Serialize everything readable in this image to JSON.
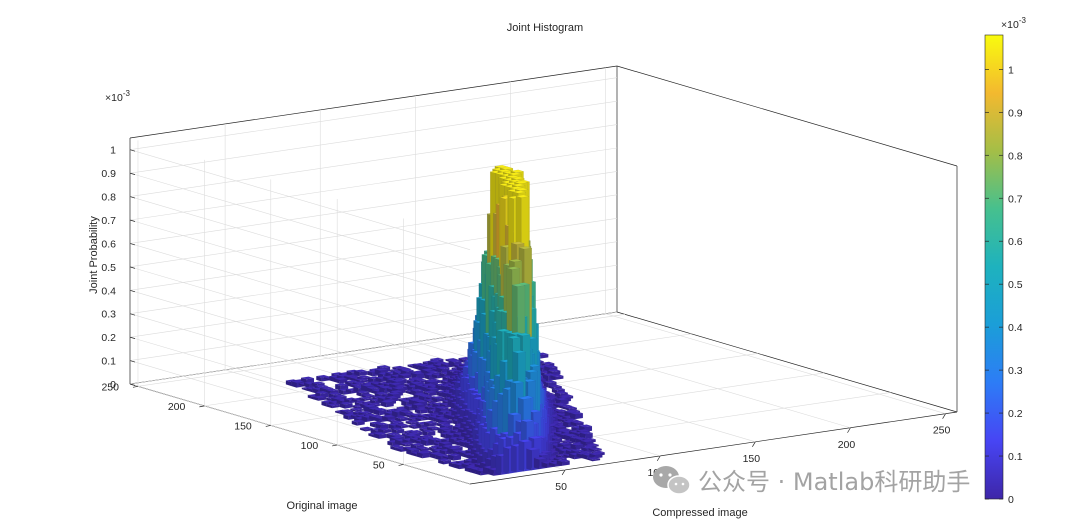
{
  "chart_data": {
    "type": "histogram3d",
    "title": "Joint Histogram",
    "xlabel": "Compressed image",
    "ylabel": "Original image",
    "zlabel": "Joint Probability",
    "z_exponent_label": "×10",
    "z_exponent": "-3",
    "xlim": [
      0,
      256
    ],
    "ylim": [
      0,
      256
    ],
    "zlim": [
      0,
      0.00105
    ],
    "x_ticks": [
      "50",
      "100",
      "150",
      "200",
      "250"
    ],
    "y_ticks": [
      "50",
      "100",
      "150",
      "200",
      "250"
    ],
    "z_ticks": [
      "0",
      "0.1",
      "0.2",
      "0.3",
      "0.4",
      "0.5",
      "0.6",
      "0.7",
      "0.8",
      "0.9",
      "1"
    ],
    "grid": true,
    "colormap": "parula",
    "colorbar": {
      "ticks": [
        "0",
        "0.1",
        "0.2",
        "0.3",
        "0.4",
        "0.5",
        "0.6",
        "0.7",
        "0.8",
        "0.9",
        "1"
      ],
      "exponent_label": "×10",
      "exponent": "-3",
      "range": [
        0,
        0.00108
      ]
    },
    "peaks": [
      {
        "compressed": 78,
        "original": 80,
        "probability": 0.00104
      },
      {
        "compressed": 95,
        "original": 112,
        "probability": 0.00063
      },
      {
        "compressed": 48,
        "original": 40,
        "probability": 0.00048
      }
    ],
    "support": {
      "compressed_range": [
        14,
        175
      ],
      "original_range": [
        8,
        215
      ]
    }
  },
  "watermark": {
    "icon": "wechat-icon",
    "text": "公众号 · Matlab科研助手"
  }
}
